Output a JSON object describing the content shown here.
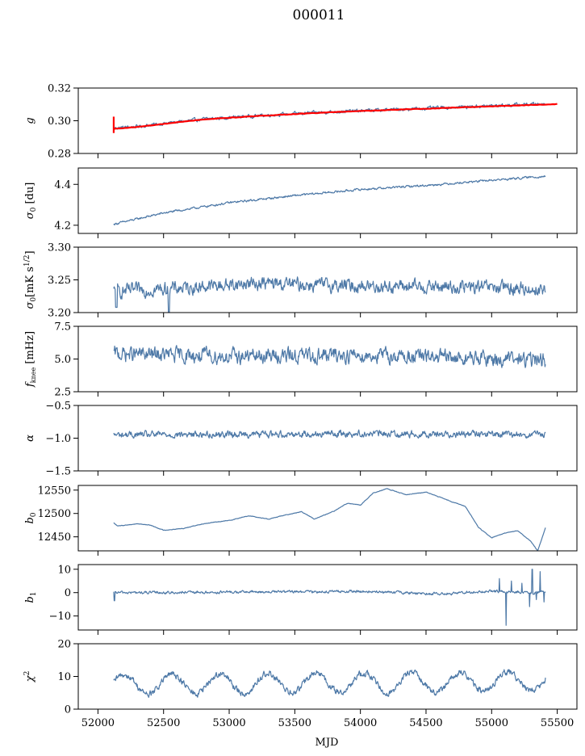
{
  "figure": {
    "title": "000011"
  },
  "chart_data": {
    "x_label": "MJD",
    "x_ticks": [
      52000,
      52500,
      53000,
      53500,
      54000,
      54500,
      55000,
      55500
    ],
    "xlim": [
      51850,
      55650
    ],
    "x_range": [
      52120,
      55410
    ],
    "colors": {
      "series": "#4e79a7",
      "fit": "#ff0000"
    },
    "panels": [
      {
        "type": "line",
        "ylabel_html": "<tspan font-style=\"italic\">g</tspan>",
        "ylim": [
          0.28,
          0.32
        ],
        "y_ticks": [
          0.28,
          0.3,
          0.32
        ],
        "y_tick_labels": [
          "0.28",
          "0.30",
          "0.32"
        ],
        "trend": [
          [
            52120,
            0.2955
          ],
          [
            52300,
            0.2965
          ],
          [
            52800,
            0.301
          ],
          [
            53300,
            0.3035
          ],
          [
            53800,
            0.3055
          ],
          [
            54300,
            0.307
          ],
          [
            54800,
            0.3085
          ],
          [
            55410,
            0.3105
          ]
        ],
        "noise": 0.0008,
        "fit": {
          "trend": [
            [
              52120,
              0.295
            ],
            [
              52300,
              0.2962
            ],
            [
              52800,
              0.3008
            ],
            [
              53300,
              0.3033
            ],
            [
              53800,
              0.3053
            ],
            [
              54300,
              0.3068
            ],
            [
              54800,
              0.3083
            ],
            [
              55500,
              0.3102
            ]
          ],
          "spike": {
            "x": 52120,
            "y_from": 0.2925,
            "y_to": 0.3025
          }
        }
      },
      {
        "type": "line",
        "ylabel_html": "<tspan font-style=\"italic\">σ</tspan><tspan font-size=\"9\" dy=\"3\">0</tspan><tspan dy=\"-3\"> [du]</tspan>",
        "ylim": [
          4.16,
          4.48
        ],
        "y_ticks": [
          4.2,
          4.4
        ],
        "y_tick_labels": [
          "4.2",
          "4.4"
        ],
        "trend": [
          [
            52120,
            4.205
          ],
          [
            52500,
            4.26
          ],
          [
            53000,
            4.31
          ],
          [
            53500,
            4.345
          ],
          [
            54000,
            4.375
          ],
          [
            54500,
            4.395
          ],
          [
            55000,
            4.42
          ],
          [
            55410,
            4.44
          ]
        ],
        "noise": 0.004
      },
      {
        "type": "line",
        "ylabel_html": "<tspan font-style=\"italic\">σ</tspan><tspan font-size=\"9\" dy=\"3\">0</tspan><tspan dy=\"-3\">[mK s</tspan><tspan font-size=\"9\" dy=\"-5\">1/2</tspan><tspan dy=\"5\">]</tspan>",
        "ylim": [
          3.2,
          3.3
        ],
        "y_ticks": [
          3.2,
          3.25,
          3.3
        ],
        "y_tick_labels": [
          "3.20",
          "3.25",
          "3.30"
        ],
        "trend": [
          [
            52120,
            3.232
          ],
          [
            52600,
            3.237
          ],
          [
            53200,
            3.245
          ],
          [
            53700,
            3.242
          ],
          [
            54300,
            3.24
          ],
          [
            55000,
            3.238
          ],
          [
            55410,
            3.235
          ]
        ],
        "noise": 0.008,
        "dips": [
          [
            52140,
            3.208
          ],
          [
            52540,
            3.201
          ]
        ]
      },
      {
        "type": "line",
        "ylabel_html": "<tspan font-style=\"italic\">f</tspan><tspan font-size=\"8\" dy=\"3\">knee</tspan><tspan dy=\"-3\"> [mHz]</tspan>",
        "ylim": [
          2.5,
          7.5
        ],
        "y_ticks": [
          2.5,
          5.0,
          7.5
        ],
        "y_tick_labels": [
          "2.5",
          "5.0",
          "7.5"
        ],
        "trend": [
          [
            52120,
            5.4
          ],
          [
            53000,
            5.2
          ],
          [
            54000,
            5.3
          ],
          [
            55000,
            5.0
          ],
          [
            55410,
            4.9
          ]
        ],
        "noise": 0.45
      },
      {
        "type": "line",
        "ylabel_html": "<tspan font-style=\"italic\">α</tspan>",
        "ylim": [
          -1.5,
          -0.5
        ],
        "y_ticks": [
          -1.5,
          -1.0,
          -0.5
        ],
        "y_tick_labels": [
          "−1.5",
          "−1.0",
          "−0.5"
        ],
        "trend": [
          [
            52120,
            -0.95
          ],
          [
            53000,
            -0.94
          ],
          [
            54000,
            -0.93
          ],
          [
            55000,
            -0.94
          ],
          [
            55410,
            -0.95
          ]
        ],
        "noise": 0.04
      },
      {
        "type": "line",
        "ylabel_html": "<tspan font-style=\"italic\">b</tspan><tspan font-size=\"9\" dy=\"3\">0</tspan>",
        "ylim": [
          12420,
          12560
        ],
        "y_ticks": [
          12450,
          12500,
          12550
        ],
        "y_tick_labels": [
          "12450",
          "12500",
          "12550"
        ],
        "trend": [
          [
            52120,
            12480
          ],
          [
            52150,
            12473
          ],
          [
            52300,
            12478
          ],
          [
            52400,
            12475
          ],
          [
            52500,
            12464
          ],
          [
            52650,
            12468
          ],
          [
            52800,
            12478
          ],
          [
            53000,
            12485
          ],
          [
            53150,
            12495
          ],
          [
            53300,
            12488
          ],
          [
            53450,
            12498
          ],
          [
            53550,
            12504
          ],
          [
            53650,
            12488
          ],
          [
            53800,
            12505
          ],
          [
            53900,
            12522
          ],
          [
            54000,
            12518
          ],
          [
            54100,
            12544
          ],
          [
            54200,
            12553
          ],
          [
            54350,
            12540
          ],
          [
            54500,
            12546
          ],
          [
            54650,
            12530
          ],
          [
            54800,
            12515
          ],
          [
            54900,
            12470
          ],
          [
            55000,
            12448
          ],
          [
            55100,
            12458
          ],
          [
            55200,
            12463
          ],
          [
            55300,
            12440
          ],
          [
            55350,
            12420
          ],
          [
            55400,
            12460
          ],
          [
            55450,
            12505
          ],
          [
            55500,
            12505
          ]
        ],
        "noise": 0.5
      },
      {
        "type": "line",
        "ylabel_html": "<tspan font-style=\"italic\">b</tspan><tspan font-size=\"9\" dy=\"3\">1</tspan>",
        "ylim": [
          -16,
          12
        ],
        "y_ticks": [
          -10,
          0,
          10
        ],
        "y_tick_labels": [
          "−10",
          "0",
          "10"
        ],
        "trend": [
          [
            52120,
            0
          ],
          [
            52600,
            0
          ],
          [
            53200,
            0.3
          ],
          [
            54000,
            0.5
          ],
          [
            54600,
            -0.5
          ],
          [
            55000,
            0.5
          ],
          [
            55410,
            0
          ]
        ],
        "noise": 0.45,
        "spikes": [
          [
            52125,
            -3.5
          ],
          [
            55060,
            6
          ],
          [
            55110,
            -14
          ],
          [
            55150,
            5
          ],
          [
            55230,
            4
          ],
          [
            55290,
            -6
          ],
          [
            55310,
            10
          ],
          [
            55340,
            -3
          ],
          [
            55370,
            9
          ],
          [
            55400,
            -4
          ]
        ]
      },
      {
        "type": "line",
        "ylabel_html": "<tspan font-style=\"italic\">χ</tspan><tspan font-size=\"9\" dy=\"-5\">2</tspan>",
        "ylim": [
          0,
          20
        ],
        "y_ticks": [
          0,
          10,
          20
        ],
        "y_tick_labels": [
          "0",
          "10",
          "20"
        ],
        "trend": [
          [
            52120,
            7.5
          ],
          [
            55410,
            8.5
          ]
        ],
        "noise": 0.8,
        "periodic": {
          "period": 365.25,
          "amplitude": 3,
          "phase": 52200
        }
      }
    ]
  }
}
